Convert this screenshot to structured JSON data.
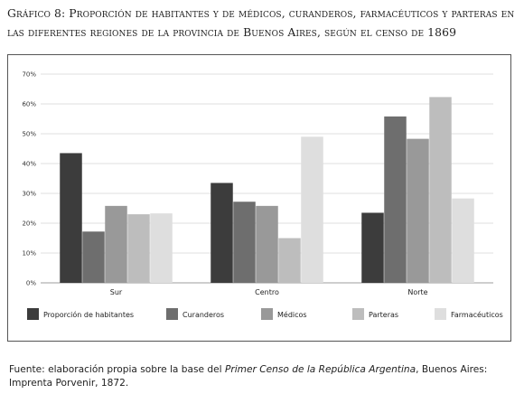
{
  "title": "Gráfico 8: Proporción de habitantes y de médicos, curanderos, farmacéuticos y parteras en las diferentes regiones de la provincia de Buenos Aires, según el censo de 1869",
  "source": {
    "prefix": "Fuente: elaboración propia sobre la base del ",
    "work": "Primer Censo de la República Argentina",
    "suffix": ", Buenos Aires: Imprenta Porvenir, 1872."
  },
  "colors": {
    "Proporción de habitantes": "#3c3c3c",
    "Curanderos": "#6e6e6e",
    "Médicos": "#999999",
    "Parteras": "#bdbdbd",
    "Farmacéuticos": "#dedede"
  },
  "chart_data": {
    "type": "bar",
    "categories": [
      "Sur",
      "Centro",
      "Norte"
    ],
    "series": [
      {
        "name": "Proporción de habitantes",
        "values": [
          43.5,
          33.5,
          23.5
        ]
      },
      {
        "name": "Curanderos",
        "values": [
          17.2,
          27.2,
          55.8
        ]
      },
      {
        "name": "Médicos",
        "values": [
          25.8,
          25.8,
          48.3
        ]
      },
      {
        "name": "Parteras",
        "values": [
          23.0,
          15.0,
          62.3
        ]
      },
      {
        "name": "Farmacéuticos",
        "values": [
          23.3,
          49.0,
          28.3
        ]
      }
    ],
    "yticks": [
      "0%",
      "10%",
      "20%",
      "30%",
      "40%",
      "50%",
      "60%",
      "70%"
    ],
    "ylim": [
      0,
      70
    ],
    "grid": true,
    "legend": "bottom"
  }
}
